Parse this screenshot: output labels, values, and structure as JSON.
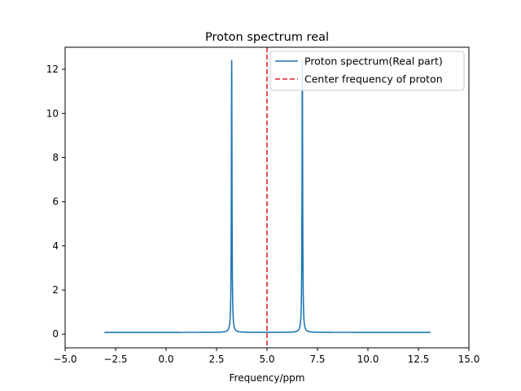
{
  "chart_data": {
    "type": "line",
    "title": "Proton spectrum real",
    "xlabel": "Frequency/ppm",
    "ylabel": "",
    "xlim": [
      -5,
      15
    ],
    "ylim": [
      -0.62,
      13.0
    ],
    "x_ticks": [
      -5,
      -2.5,
      0,
      2.5,
      5,
      7.5,
      10,
      12.5,
      15
    ],
    "x_tick_labels": [
      "−5.0",
      "−2.5",
      "0.0",
      "2.5",
      "5.0",
      "7.5",
      "10.0",
      "12.5",
      "15.0"
    ],
    "y_ticks": [
      0,
      2,
      4,
      6,
      8,
      10,
      12
    ],
    "y_tick_labels": [
      "0",
      "2",
      "4",
      "6",
      "8",
      "10",
      "12"
    ],
    "grid": false,
    "legend_position": "top-right",
    "series": [
      {
        "name": "Proton spectrum(Real part)",
        "color": "#1f77b4",
        "style": "solid",
        "x_range": [
          -3.05,
          13.1
        ],
        "baseline": 0.08,
        "peaks": [
          {
            "center": 3.25,
            "height": 12.4,
            "half_width": 0.018
          },
          {
            "center": 6.75,
            "height": 12.4,
            "half_width": 0.018
          }
        ]
      }
    ],
    "vlines": [
      {
        "name": "Center frequency of proton",
        "x": 5.0,
        "color": "#d62728",
        "style": "dashed"
      }
    ]
  }
}
